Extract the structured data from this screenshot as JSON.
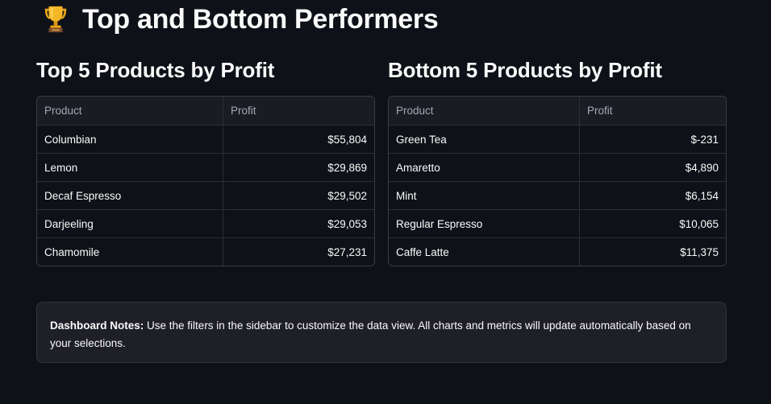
{
  "header": {
    "title": "Top and Bottom Performers",
    "icon": "trophy-icon"
  },
  "top_table": {
    "title": "Top 5 Products by Profit",
    "columns": [
      "Product",
      "Profit"
    ],
    "rows": [
      {
        "product": "Columbian",
        "profit": "$55,804"
      },
      {
        "product": "Lemon",
        "profit": "$29,869"
      },
      {
        "product": "Decaf Espresso",
        "profit": "$29,502"
      },
      {
        "product": "Darjeeling",
        "profit": "$29,053"
      },
      {
        "product": "Chamomile",
        "profit": "$27,231"
      }
    ]
  },
  "bottom_table": {
    "title": "Bottom 5 Products by Profit",
    "columns": [
      "Product",
      "Profit"
    ],
    "rows": [
      {
        "product": "Green Tea",
        "profit": "$-231"
      },
      {
        "product": "Amaretto",
        "profit": "$4,890"
      },
      {
        "product": "Mint",
        "profit": "$6,154"
      },
      {
        "product": "Regular Espresso",
        "profit": "$10,065"
      },
      {
        "product": "Caffe Latte",
        "profit": "$11,375"
      }
    ]
  },
  "notes": {
    "label": "Dashboard Notes:",
    "text": " Use the filters in the sidebar to customize the data view. All charts and metrics will update automatically based on your selections."
  },
  "colors": {
    "background": "#0e1117",
    "table_border": "#3a3d47",
    "notes_background": "#1e1f27"
  }
}
